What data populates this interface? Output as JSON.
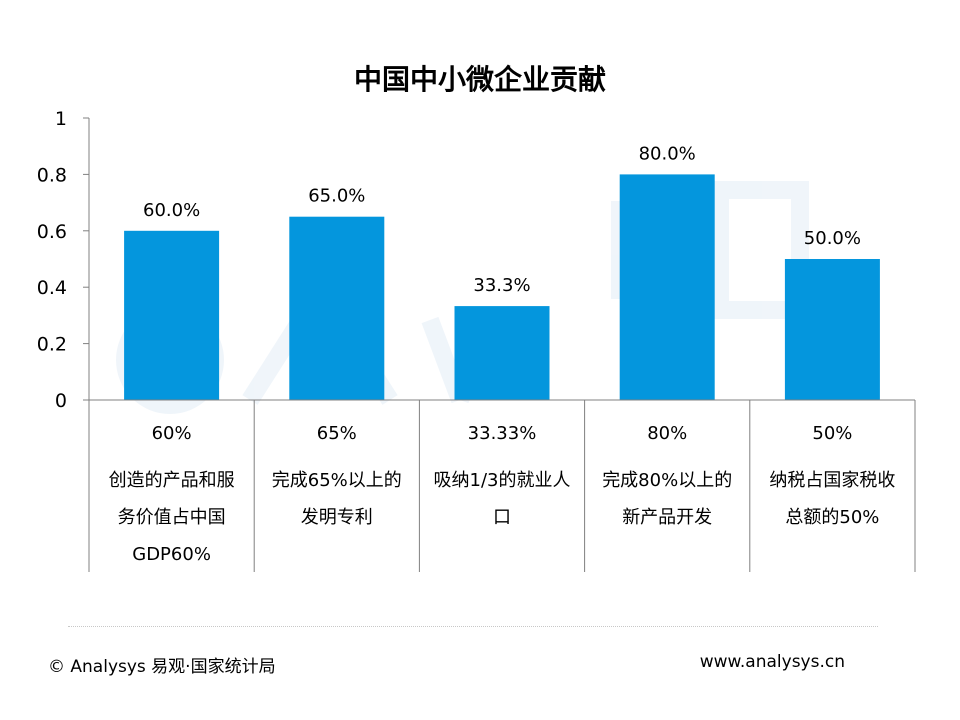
{
  "chart_data": {
    "type": "bar",
    "title": "中国中小微企业贡献",
    "ylim": [
      0,
      1
    ],
    "yticks": [
      "0",
      "0.2",
      "0.4",
      "0.6",
      "0.8",
      "1"
    ],
    "ytick_values": [
      0,
      0.2,
      0.4,
      0.6,
      0.8,
      1
    ],
    "values": [
      0.6,
      0.65,
      0.333,
      0.8,
      0.5
    ],
    "data_labels": [
      "60.0%",
      "65.0%",
      "33.3%",
      "80.0%",
      "50.0%"
    ],
    "bar_color": "#0496DD",
    "grid": false,
    "legend": "none",
    "table": {
      "values": [
        "60%",
        "65%",
        "33.33%",
        "80%",
        "50%"
      ],
      "descriptions": [
        [
          "创造的产品和服",
          "务价值占中国",
          "GDP60%"
        ],
        [
          "完成65%以上的",
          "发明专利"
        ],
        [
          "吸纳1/3的就业人",
          "口"
        ],
        [
          "完成80%以上的",
          "新产品开发"
        ],
        [
          "纳税占国家税收",
          "总额的50%"
        ]
      ]
    }
  },
  "footer": {
    "left": "© Analysys 易观·国家统计局",
    "right": "www.analysys.cn"
  }
}
